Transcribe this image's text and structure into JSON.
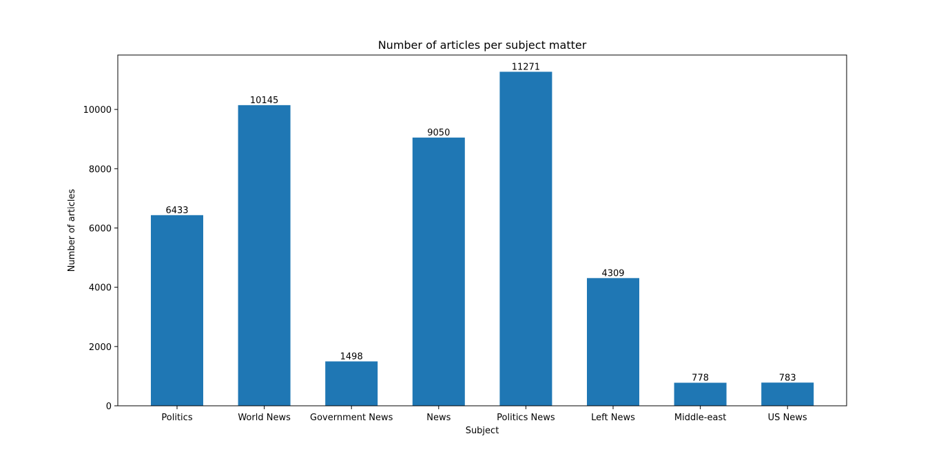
{
  "chart_data": {
    "type": "bar",
    "title": "Number of articles per subject matter",
    "xlabel": "Subject",
    "ylabel": "Number of articles",
    "categories": [
      "Politics",
      "World News",
      "Government News",
      "News",
      "Politics News",
      "Left News",
      "Middle-east",
      "US News"
    ],
    "values": [
      6433,
      10145,
      1498,
      9050,
      11271,
      4309,
      778,
      783
    ],
    "ylim": [
      0,
      11836
    ],
    "yticks": [
      0,
      2000,
      4000,
      6000,
      8000,
      10000
    ],
    "bar_color": "#1f77b4",
    "grid": false,
    "legend": "none"
  }
}
